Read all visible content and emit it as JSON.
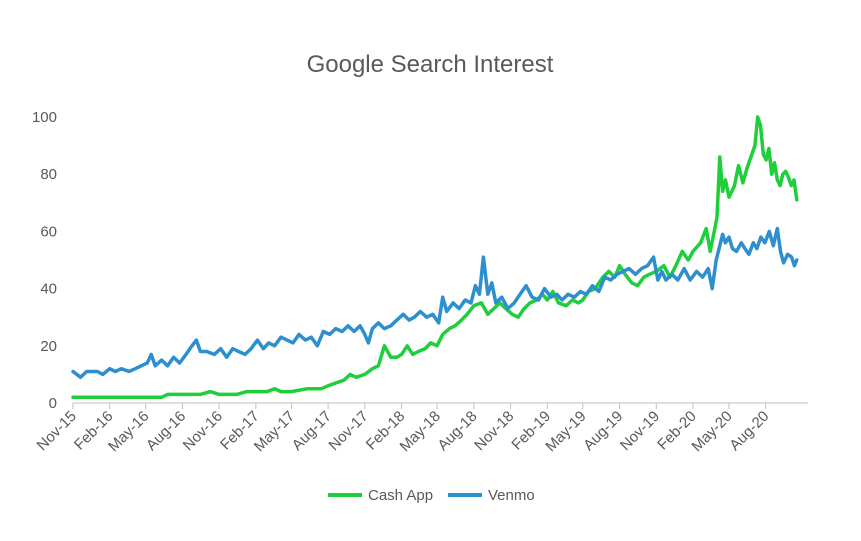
{
  "chart_data": {
    "type": "line",
    "title": "Google Search Interest",
    "xlabel": "",
    "ylabel": "",
    "x_start": "2015-11-01",
    "x_end": "2020-11-15",
    "x_ticks": [
      "Nov-15",
      "Feb-16",
      "May-16",
      "Aug-16",
      "Nov-16",
      "Feb-17",
      "May-17",
      "Aug-17",
      "Nov-17",
      "Feb-18",
      "May-18",
      "Aug-18",
      "Nov-18",
      "Feb-19",
      "May-19",
      "Aug-19",
      "Nov-19",
      "Feb-20",
      "May-20",
      "Aug-20"
    ],
    "y_ticks": [
      0,
      20,
      40,
      60,
      80,
      100
    ],
    "ylim": [
      0,
      100
    ],
    "grid": false,
    "legend_position": "bottom",
    "series": [
      {
        "name": "Cash App",
        "color": "#1ece3a",
        "points": [
          [
            "2015-11-01",
            2
          ],
          [
            "2016-02-01",
            2
          ],
          [
            "2016-05-01",
            2
          ],
          [
            "2016-06-10",
            2
          ],
          [
            "2016-06-25",
            3
          ],
          [
            "2016-08-01",
            3
          ],
          [
            "2016-09-15",
            3
          ],
          [
            "2016-10-10",
            4
          ],
          [
            "2016-11-01",
            3
          ],
          [
            "2016-12-15",
            3
          ],
          [
            "2017-01-10",
            4
          ],
          [
            "2017-02-01",
            4
          ],
          [
            "2017-03-01",
            4
          ],
          [
            "2017-03-20",
            5
          ],
          [
            "2017-04-05",
            4
          ],
          [
            "2017-05-01",
            4
          ],
          [
            "2017-06-10",
            5
          ],
          [
            "2017-07-15",
            5
          ],
          [
            "2017-08-01",
            6
          ],
          [
            "2017-08-20",
            7
          ],
          [
            "2017-09-10",
            8
          ],
          [
            "2017-09-25",
            10
          ],
          [
            "2017-10-10",
            9
          ],
          [
            "2017-11-01",
            10
          ],
          [
            "2017-11-20",
            12
          ],
          [
            "2017-12-05",
            13
          ],
          [
            "2017-12-20",
            20
          ],
          [
            "2018-01-05",
            16
          ],
          [
            "2018-01-20",
            16
          ],
          [
            "2018-02-01",
            17
          ],
          [
            "2018-02-15",
            20
          ],
          [
            "2018-03-01",
            17
          ],
          [
            "2018-03-15",
            18
          ],
          [
            "2018-04-01",
            19
          ],
          [
            "2018-04-15",
            21
          ],
          [
            "2018-05-01",
            20
          ],
          [
            "2018-05-15",
            24
          ],
          [
            "2018-06-01",
            26
          ],
          [
            "2018-06-15",
            27
          ],
          [
            "2018-07-01",
            29
          ],
          [
            "2018-07-15",
            31
          ],
          [
            "2018-08-01",
            34
          ],
          [
            "2018-08-20",
            35
          ],
          [
            "2018-09-05",
            31
          ],
          [
            "2018-09-20",
            33
          ],
          [
            "2018-10-05",
            35
          ],
          [
            "2018-10-20",
            33
          ],
          [
            "2018-11-05",
            31
          ],
          [
            "2018-11-20",
            30
          ],
          [
            "2018-12-05",
            33
          ],
          [
            "2018-12-20",
            35
          ],
          [
            "2019-01-05",
            36
          ],
          [
            "2019-01-20",
            38
          ],
          [
            "2019-02-01",
            36
          ],
          [
            "2019-02-15",
            39
          ],
          [
            "2019-03-01",
            35
          ],
          [
            "2019-03-20",
            34
          ],
          [
            "2019-04-05",
            36
          ],
          [
            "2019-04-20",
            35
          ],
          [
            "2019-05-01",
            36
          ],
          [
            "2019-05-15",
            39
          ],
          [
            "2019-06-01",
            40
          ],
          [
            "2019-06-20",
            44
          ],
          [
            "2019-07-05",
            46
          ],
          [
            "2019-07-20",
            44
          ],
          [
            "2019-08-01",
            48
          ],
          [
            "2019-08-15",
            45
          ],
          [
            "2019-09-01",
            42
          ],
          [
            "2019-09-15",
            41
          ],
          [
            "2019-10-01",
            44
          ],
          [
            "2019-10-15",
            45
          ],
          [
            "2019-11-01",
            46
          ],
          [
            "2019-11-20",
            48
          ],
          [
            "2019-12-05",
            44
          ],
          [
            "2019-12-20",
            48
          ],
          [
            "2020-01-05",
            53
          ],
          [
            "2020-01-20",
            50
          ],
          [
            "2020-02-01",
            53
          ],
          [
            "2020-02-20",
            56
          ],
          [
            "2020-03-05",
            61
          ],
          [
            "2020-03-15",
            53
          ],
          [
            "2020-03-28",
            62
          ],
          [
            "2020-04-01",
            65
          ],
          [
            "2020-04-08",
            86
          ],
          [
            "2020-04-15",
            74
          ],
          [
            "2020-04-22",
            78
          ],
          [
            "2020-05-01",
            72
          ],
          [
            "2020-05-15",
            76
          ],
          [
            "2020-05-25",
            83
          ],
          [
            "2020-06-05",
            77
          ],
          [
            "2020-06-15",
            82
          ],
          [
            "2020-06-25",
            86
          ],
          [
            "2020-07-05",
            90
          ],
          [
            "2020-07-12",
            100
          ],
          [
            "2020-07-19",
            97
          ],
          [
            "2020-07-26",
            87
          ],
          [
            "2020-08-02",
            85
          ],
          [
            "2020-08-09",
            89
          ],
          [
            "2020-08-16",
            80
          ],
          [
            "2020-08-23",
            84
          ],
          [
            "2020-08-30",
            78
          ],
          [
            "2020-09-06",
            76
          ],
          [
            "2020-09-13",
            80
          ],
          [
            "2020-09-20",
            81
          ],
          [
            "2020-09-27",
            79
          ],
          [
            "2020-10-04",
            76
          ],
          [
            "2020-10-11",
            78
          ],
          [
            "2020-10-18",
            71
          ]
        ]
      },
      {
        "name": "Venmo",
        "color": "#2e8fcf",
        "points": [
          [
            "2015-11-01",
            11
          ],
          [
            "2015-11-20",
            9
          ],
          [
            "2015-12-05",
            11
          ],
          [
            "2016-01-01",
            11
          ],
          [
            "2016-01-15",
            10
          ],
          [
            "2016-02-01",
            12
          ],
          [
            "2016-02-15",
            11
          ],
          [
            "2016-03-01",
            12
          ],
          [
            "2016-03-20",
            11
          ],
          [
            "2016-04-05",
            12
          ],
          [
            "2016-04-20",
            13
          ],
          [
            "2016-05-05",
            14
          ],
          [
            "2016-05-15",
            17
          ],
          [
            "2016-05-25",
            13
          ],
          [
            "2016-06-10",
            15
          ],
          [
            "2016-06-25",
            13
          ],
          [
            "2016-07-10",
            16
          ],
          [
            "2016-07-25",
            14
          ],
          [
            "2016-08-10",
            17
          ],
          [
            "2016-08-25",
            20
          ],
          [
            "2016-09-05",
            22
          ],
          [
            "2016-09-15",
            18
          ],
          [
            "2016-10-01",
            18
          ],
          [
            "2016-10-20",
            17
          ],
          [
            "2016-11-05",
            19
          ],
          [
            "2016-11-20",
            16
          ],
          [
            "2016-12-05",
            19
          ],
          [
            "2016-12-20",
            18
          ],
          [
            "2017-01-05",
            17
          ],
          [
            "2017-01-20",
            19
          ],
          [
            "2017-02-05",
            22
          ],
          [
            "2017-02-20",
            19
          ],
          [
            "2017-03-05",
            21
          ],
          [
            "2017-03-20",
            20
          ],
          [
            "2017-04-05",
            23
          ],
          [
            "2017-04-20",
            22
          ],
          [
            "2017-05-05",
            21
          ],
          [
            "2017-05-20",
            24
          ],
          [
            "2017-06-05",
            22
          ],
          [
            "2017-06-20",
            23
          ],
          [
            "2017-07-05",
            20
          ],
          [
            "2017-07-20",
            25
          ],
          [
            "2017-08-05",
            24
          ],
          [
            "2017-08-20",
            26
          ],
          [
            "2017-09-05",
            25
          ],
          [
            "2017-09-20",
            27
          ],
          [
            "2017-10-05",
            25
          ],
          [
            "2017-10-20",
            27
          ],
          [
            "2017-11-01",
            24
          ],
          [
            "2017-11-10",
            21
          ],
          [
            "2017-11-20",
            26
          ],
          [
            "2017-12-05",
            28
          ],
          [
            "2017-12-20",
            26
          ],
          [
            "2018-01-05",
            27
          ],
          [
            "2018-01-20",
            29
          ],
          [
            "2018-02-05",
            31
          ],
          [
            "2018-02-20",
            29
          ],
          [
            "2018-03-05",
            30
          ],
          [
            "2018-03-20",
            32
          ],
          [
            "2018-04-05",
            30
          ],
          [
            "2018-04-20",
            31
          ],
          [
            "2018-05-05",
            28
          ],
          [
            "2018-05-15",
            37
          ],
          [
            "2018-05-25",
            32
          ],
          [
            "2018-06-10",
            35
          ],
          [
            "2018-06-25",
            33
          ],
          [
            "2018-07-10",
            36
          ],
          [
            "2018-07-25",
            35
          ],
          [
            "2018-08-05",
            41
          ],
          [
            "2018-08-15",
            38
          ],
          [
            "2018-08-25",
            51
          ],
          [
            "2018-09-05",
            38
          ],
          [
            "2018-09-15",
            42
          ],
          [
            "2018-09-25",
            35
          ],
          [
            "2018-10-10",
            37
          ],
          [
            "2018-10-25",
            33
          ],
          [
            "2018-11-10",
            35
          ],
          [
            "2018-11-25",
            38
          ],
          [
            "2018-12-10",
            41
          ],
          [
            "2018-12-25",
            37
          ],
          [
            "2019-01-10",
            36
          ],
          [
            "2019-01-25",
            40
          ],
          [
            "2019-02-10",
            37
          ],
          [
            "2019-02-25",
            38
          ],
          [
            "2019-03-10",
            36
          ],
          [
            "2019-03-25",
            38
          ],
          [
            "2019-04-10",
            37
          ],
          [
            "2019-04-25",
            39
          ],
          [
            "2019-05-10",
            38
          ],
          [
            "2019-05-25",
            41
          ],
          [
            "2019-06-10",
            39
          ],
          [
            "2019-06-25",
            44
          ],
          [
            "2019-07-10",
            43
          ],
          [
            "2019-07-25",
            45
          ],
          [
            "2019-08-10",
            46
          ],
          [
            "2019-08-25",
            47
          ],
          [
            "2019-09-10",
            45
          ],
          [
            "2019-09-25",
            47
          ],
          [
            "2019-10-10",
            48
          ],
          [
            "2019-10-25",
            51
          ],
          [
            "2019-11-05",
            43
          ],
          [
            "2019-11-15",
            46
          ],
          [
            "2019-11-25",
            43
          ],
          [
            "2019-12-10",
            45
          ],
          [
            "2019-12-25",
            43
          ],
          [
            "2020-01-10",
            47
          ],
          [
            "2020-01-25",
            43
          ],
          [
            "2020-02-10",
            46
          ],
          [
            "2020-02-25",
            44
          ],
          [
            "2020-03-10",
            47
          ],
          [
            "2020-03-20",
            40
          ],
          [
            "2020-03-30",
            50
          ],
          [
            "2020-04-08",
            55
          ],
          [
            "2020-04-15",
            59
          ],
          [
            "2020-04-22",
            56
          ],
          [
            "2020-05-01",
            58
          ],
          [
            "2020-05-10",
            54
          ],
          [
            "2020-05-20",
            53
          ],
          [
            "2020-06-01",
            56
          ],
          [
            "2020-06-10",
            54
          ],
          [
            "2020-06-20",
            52
          ],
          [
            "2020-07-01",
            56
          ],
          [
            "2020-07-10",
            54
          ],
          [
            "2020-07-20",
            58
          ],
          [
            "2020-07-30",
            56
          ],
          [
            "2020-08-10",
            60
          ],
          [
            "2020-08-20",
            55
          ],
          [
            "2020-08-30",
            61
          ],
          [
            "2020-09-07",
            53
          ],
          [
            "2020-09-15",
            49
          ],
          [
            "2020-09-25",
            52
          ],
          [
            "2020-10-05",
            51
          ],
          [
            "2020-10-12",
            48
          ],
          [
            "2020-10-18",
            50
          ]
        ]
      }
    ]
  }
}
